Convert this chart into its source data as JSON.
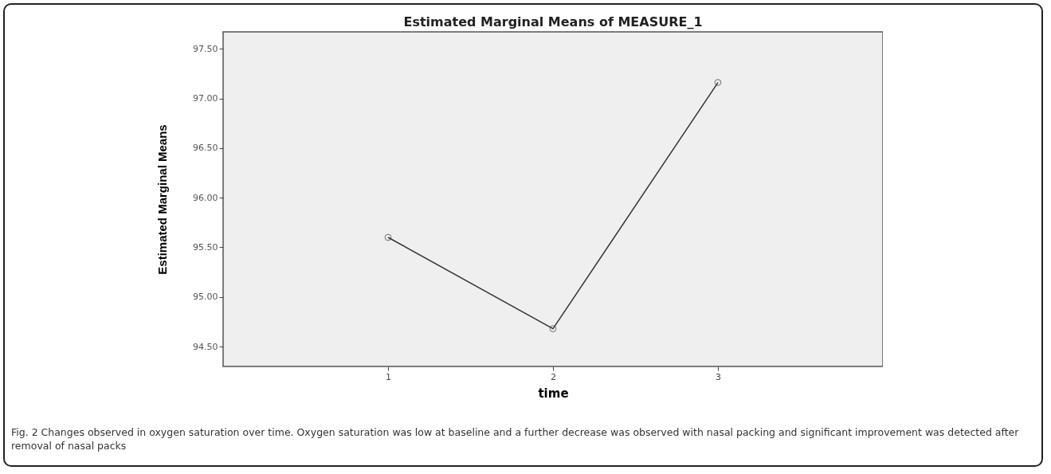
{
  "chart_data": {
    "type": "line",
    "title": "Estimated Marginal Means of MEASURE_1",
    "xlabel": "time",
    "ylabel": "Estimated Marginal Means",
    "categories": [
      "1",
      "2",
      "3"
    ],
    "series": [
      {
        "color": "#333333",
        "values": [
          95.6,
          94.68,
          97.16
        ]
      }
    ],
    "ylim": [
      94.3,
      97.67
    ],
    "yticks": [
      {
        "value": 94.5,
        "label": "94.50"
      },
      {
        "value": 95,
        "label": "95.00"
      },
      {
        "value": 95.5,
        "label": "95.50"
      },
      {
        "value": 96,
        "label": "96.00"
      },
      {
        "value": 96.5,
        "label": "96.50"
      },
      {
        "value": 97,
        "label": "97.00"
      },
      {
        "value": 97.5,
        "label": "97.50"
      }
    ],
    "marker": "circle",
    "grid": false,
    "annotations": [
      "Fig. 2 Changes observed in oxygen saturation over time. Oxygen saturation was low at baseline and a further decrease was observed with nasal packing and significant improvement was detected after removal of nasal packs"
    ]
  }
}
